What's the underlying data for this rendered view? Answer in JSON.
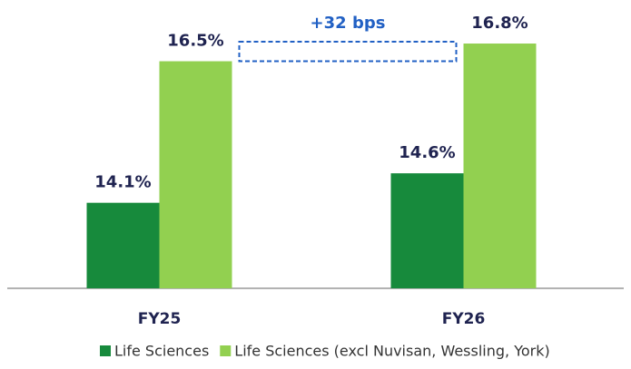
{
  "chart_data": {
    "type": "bar",
    "categories": [
      "FY25",
      "FY26"
    ],
    "series": [
      {
        "name": "Life Sciences",
        "color": "#178a3c",
        "values": [
          14.1,
          14.6
        ],
        "value_labels": [
          "14.1%",
          "14.6%"
        ]
      },
      {
        "name": "Life Sciences (excl Nuvisan, Wessling, York)",
        "color": "#92d050",
        "values": [
          16.5,
          16.8
        ],
        "value_labels": [
          "16.5%",
          "16.8%"
        ]
      }
    ],
    "ylim": [
      12.65,
      17.2
    ],
    "annotation": "+32 bps",
    "legend": "bottom"
  }
}
